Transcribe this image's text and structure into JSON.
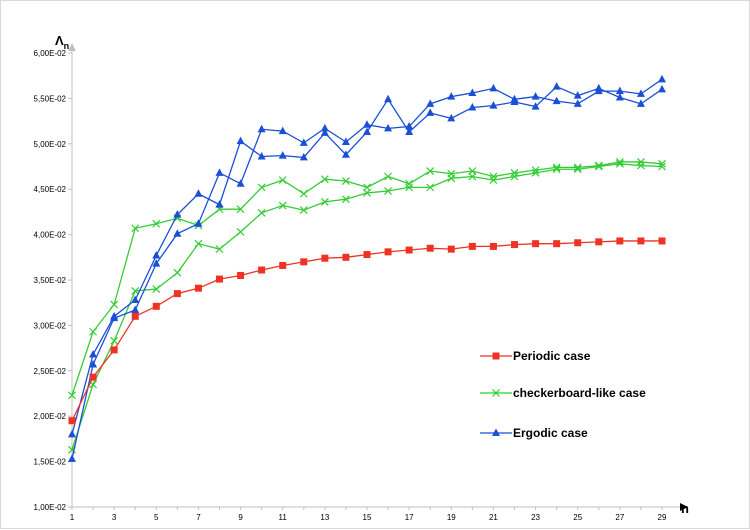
{
  "chart_data": {
    "type": "line",
    "title": "",
    "ylabel": "Λ",
    "ylabel_sub": "n",
    "xlabel": "n",
    "x": [
      1,
      2,
      3,
      4,
      5,
      6,
      7,
      8,
      9,
      10,
      11,
      12,
      13,
      14,
      15,
      16,
      17,
      18,
      19,
      20,
      21,
      22,
      23,
      24,
      25,
      26,
      27,
      28,
      29
    ],
    "x_tick_labels": [
      "1",
      "3",
      "5",
      "7",
      "9",
      "11",
      "13",
      "15",
      "17",
      "19",
      "21",
      "23",
      "25",
      "27",
      "29"
    ],
    "x_tick_values": [
      1,
      3,
      5,
      7,
      9,
      11,
      13,
      15,
      17,
      19,
      21,
      23,
      25,
      27,
      29
    ],
    "y_tick_labels": [
      "1,00E-02",
      "1,50E-02",
      "2,00E-02",
      "2,50E-02",
      "3,00E-02",
      "3,50E-02",
      "4,00E-02",
      "4,50E-02",
      "5,00E-02",
      "5,50E-02",
      "6,00E-02"
    ],
    "y_tick_values": [
      0.01,
      0.015,
      0.02,
      0.025,
      0.03,
      0.035,
      0.04,
      0.045,
      0.05,
      0.055,
      0.06
    ],
    "ylim": [
      0.01,
      0.06
    ],
    "xlim": [
      1,
      29
    ],
    "grid": false,
    "legend_position": "bottom-right",
    "series": [
      {
        "name": "Periodic case",
        "color": "#ee3224",
        "marker": "square",
        "values": [
          0.0195,
          0.0243,
          0.0273,
          0.031,
          0.0321,
          0.0335,
          0.0341,
          0.0351,
          0.0355,
          0.0361,
          0.0366,
          0.037,
          0.0374,
          0.0375,
          0.0378,
          0.0381,
          0.0383,
          0.0385,
          0.0384,
          0.0387,
          0.0387,
          0.0389,
          0.039,
          0.039,
          0.0391,
          0.0392,
          0.0393,
          0.0393,
          0.0393
        ]
      },
      {
        "name": "checkerboard-like case",
        "color": "#33cc33",
        "marker": "x",
        "lines": [
          [
            0.0223,
            0.0293,
            0.0323,
            0.0407,
            0.0412,
            0.0418,
            0.041,
            0.0428,
            0.0428,
            0.0452,
            0.046,
            0.0445,
            0.0461,
            0.0459,
            0.0452,
            0.0464,
            0.0456,
            0.047,
            0.0467,
            0.047,
            0.0464,
            0.0468,
            0.0471,
            0.0474,
            0.0474,
            0.0476,
            0.048,
            0.048,
            0.0478
          ],
          [
            0.0163,
            0.0235,
            0.0283,
            0.0338,
            0.034,
            0.0358,
            0.039,
            0.0384,
            0.0403,
            0.0424,
            0.0432,
            0.0427,
            0.0436,
            0.0439,
            0.0446,
            0.0448,
            0.0452,
            0.0452,
            0.0462,
            0.0464,
            0.046,
            0.0464,
            0.0468,
            0.0472,
            0.0472,
            0.0475,
            0.0478,
            0.0476,
            0.0475
          ]
        ]
      },
      {
        "name": "Ergodic case",
        "color": "#1a4fd6",
        "marker": "triangle",
        "lines": [
          [
            0.0153,
            0.0257,
            0.0308,
            0.0317,
            0.0368,
            0.0401,
            0.0412,
            0.0468,
            0.0456,
            0.0516,
            0.0514,
            0.0501,
            0.0517,
            0.0502,
            0.0521,
            0.0517,
            0.0519,
            0.0544,
            0.0552,
            0.0556,
            0.0561,
            0.0549,
            0.0552,
            0.0547,
            0.0544,
            0.0558,
            0.0558,
            0.0555,
            0.0571
          ],
          [
            0.018,
            0.0268,
            0.031,
            0.0328,
            0.0377,
            0.0422,
            0.0445,
            0.0433,
            0.0503,
            0.0486,
            0.0487,
            0.0485,
            0.0512,
            0.0488,
            0.0513,
            0.0549,
            0.0513,
            0.0534,
            0.0528,
            0.054,
            0.0542,
            0.0546,
            0.0541,
            0.0563,
            0.0553,
            0.0561,
            0.0551,
            0.0544,
            0.056
          ]
        ]
      }
    ]
  }
}
